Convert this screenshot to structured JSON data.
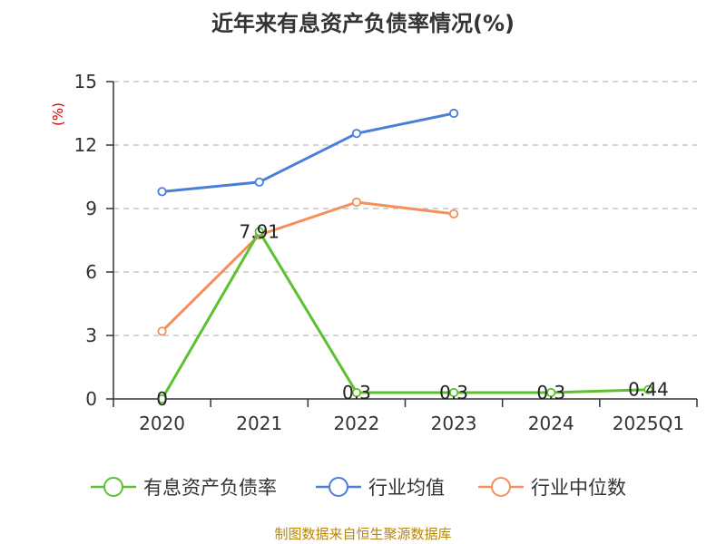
{
  "chart_data": {
    "type": "line",
    "title": "近年来有息资产负债率情况(%)",
    "ylabel": "(%)",
    "categories": [
      "2020",
      "2021",
      "2022",
      "2023",
      "2024",
      "2025Q1"
    ],
    "ylim": [
      0,
      15
    ],
    "yticks": [
      0,
      3,
      6,
      9,
      12,
      15
    ],
    "grid": true,
    "legend_position": "bottom",
    "series": [
      {
        "name": "有息资产负债率",
        "color": "#5cc12f",
        "values": [
          0,
          7.91,
          0.3,
          0.3,
          0.3,
          0.44
        ],
        "labels": [
          "0",
          "7.91",
          "0.3",
          "0.3",
          "0.3",
          "0.44"
        ]
      },
      {
        "name": "行业均值",
        "color": "#4a7fd8",
        "values": [
          9.8,
          10.25,
          12.55,
          13.5,
          null,
          null
        ]
      },
      {
        "name": "行业中位数",
        "color": "#f5905a",
        "values": [
          3.2,
          7.75,
          9.3,
          8.75,
          null,
          null
        ]
      }
    ]
  },
  "footer": "制图数据来自恒生聚源数据库",
  "colors": {
    "title": "#333333",
    "ylabel": "#cc0000",
    "footer": "#b8860b",
    "grid": "#bbbbbb"
  }
}
